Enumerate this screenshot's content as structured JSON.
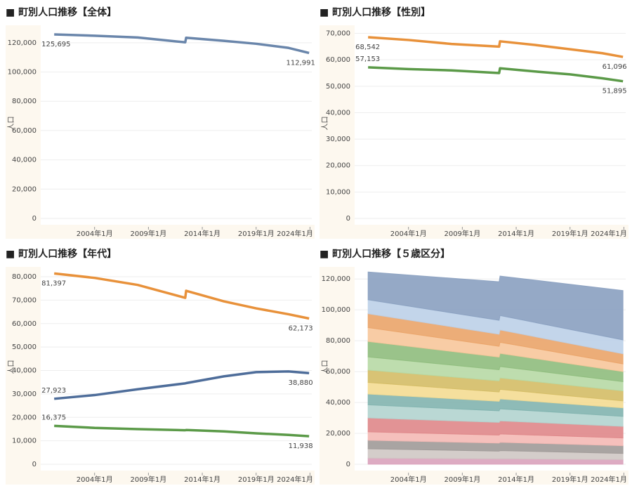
{
  "chart_data": [
    {
      "type": "line",
      "title": "■ 町別人口推移【全体】",
      "y_label": "人口",
      "x": [
        "2000-04",
        "2004-01",
        "2008-01",
        "2012-06",
        "2012-07",
        "2016-01",
        "2019-01",
        "2022-01",
        "2023-12"
      ],
      "series": [
        {
          "color": "#6a86ab",
          "values": [
            125695,
            124800,
            123600,
            120300,
            123400,
            121300,
            119300,
            116500,
            112991
          ],
          "value_labels": [
            "125,695",
            null,
            null,
            null,
            null,
            null,
            null,
            null,
            "112,991"
          ]
        }
      ],
      "xlim": [
        "1999-01",
        "2024-03"
      ],
      "xticks": [
        {
          "value": "2004-01",
          "label": "2004年1月"
        },
        {
          "value": "2009-01",
          "label": "2009年1月"
        },
        {
          "value": "2014-01",
          "label": "2014年1月"
        },
        {
          "value": "2019-01",
          "label": "2019年1月"
        },
        {
          "value": "2024-01",
          "label": "2024年1月"
        }
      ],
      "ylim": [
        0,
        130000
      ],
      "yticks": [
        0,
        {
          "value": 20000,
          "label": "20,000"
        },
        {
          "value": 40000,
          "label": "40,000"
        },
        {
          "value": 60000,
          "label": "60,000"
        },
        {
          "value": 80000,
          "label": "80,000"
        },
        {
          "value": 100000,
          "label": "100,000"
        },
        {
          "value": 120000,
          "label": "120,000"
        }
      ],
      "grid": true
    },
    {
      "type": "line",
      "title": "■ 町別人口推移【性別】",
      "y_label": "人口",
      "x": [
        "2000-04",
        "2004-01",
        "2008-01",
        "2012-06",
        "2012-07",
        "2016-01",
        "2019-01",
        "2022-01",
        "2023-12"
      ],
      "series": [
        {
          "color": "#e8913a",
          "values": [
            68542,
            67500,
            66000,
            65000,
            67000,
            65500,
            64000,
            62500,
            61096
          ],
          "value_labels": [
            "68,542",
            null,
            null,
            null,
            null,
            null,
            null,
            null,
            "61,096"
          ]
        },
        {
          "color": "#5b9a48",
          "values": [
            57153,
            56500,
            56000,
            55000,
            56800,
            55500,
            54500,
            53000,
            51895
          ],
          "value_labels": [
            "57,153",
            null,
            null,
            null,
            null,
            null,
            null,
            null,
            "51,895"
          ]
        }
      ],
      "xlim": [
        "1999-01",
        "2024-03"
      ],
      "xticks": [
        {
          "value": "2004-01",
          "label": "2004年1月"
        },
        {
          "value": "2009-01",
          "label": "2009年1月"
        },
        {
          "value": "2014-01",
          "label": "2014年1月"
        },
        {
          "value": "2019-01",
          "label": "2019年1月"
        },
        {
          "value": "2024-01",
          "label": "2024年1月"
        }
      ],
      "ylim": [
        0,
        72000
      ],
      "yticks": [
        0,
        {
          "value": 10000,
          "label": "10,000"
        },
        {
          "value": 20000,
          "label": "20,000"
        },
        {
          "value": 30000,
          "label": "30,000"
        },
        {
          "value": 40000,
          "label": "40,000"
        },
        {
          "value": 50000,
          "label": "50,000"
        },
        {
          "value": 60000,
          "label": "60,000"
        },
        {
          "value": 70000,
          "label": "70,000"
        }
      ],
      "grid": true
    },
    {
      "type": "line",
      "title": "■ 町別人口推移【年代】",
      "y_label": "人口",
      "x": [
        "2000-04",
        "2004-01",
        "2008-01",
        "2012-06",
        "2012-07",
        "2016-01",
        "2019-01",
        "2022-01",
        "2023-12"
      ],
      "series": [
        {
          "color": "#e8913a",
          "values": [
            81397,
            79500,
            76500,
            71000,
            74000,
            69500,
            66500,
            64000,
            62173
          ],
          "value_labels": [
            "81,397",
            null,
            null,
            null,
            null,
            null,
            null,
            null,
            "62,173"
          ]
        },
        {
          "color": "#4e6d9a",
          "values": [
            27923,
            29500,
            32000,
            34500,
            34600,
            37500,
            39300,
            39600,
            38880
          ],
          "value_labels": [
            "27,923",
            null,
            null,
            null,
            null,
            null,
            null,
            null,
            "38,880"
          ]
        },
        {
          "color": "#5b9a48",
          "values": [
            16375,
            15500,
            15000,
            14500,
            14600,
            14000,
            13200,
            12500,
            11938
          ],
          "value_labels": [
            "16,375",
            null,
            null,
            null,
            null,
            null,
            null,
            null,
            "11,938"
          ]
        }
      ],
      "xlim": [
        "1999-01",
        "2024-03"
      ],
      "xticks": [
        {
          "value": "2004-01",
          "label": "2004年1月"
        },
        {
          "value": "2009-01",
          "label": "2009年1月"
        },
        {
          "value": "2014-01",
          "label": "2014年1月"
        },
        {
          "value": "2019-01",
          "label": "2019年1月"
        },
        {
          "value": "2024-01",
          "label": "2024年1月"
        }
      ],
      "ylim": [
        0,
        83000
      ],
      "yticks": [
        0,
        {
          "value": 10000,
          "label": "10,000"
        },
        {
          "value": 20000,
          "label": "20,000"
        },
        {
          "value": 30000,
          "label": "30,000"
        },
        {
          "value": 40000,
          "label": "40,000"
        },
        {
          "value": 50000,
          "label": "50,000"
        },
        {
          "value": 60000,
          "label": "60,000"
        },
        {
          "value": 70000,
          "label": "70,000"
        },
        {
          "value": 80000,
          "label": "80,000"
        }
      ],
      "grid": true
    },
    {
      "type": "area",
      "title": "■ 町別人口推移【５歳区分】",
      "y_label": "人口",
      "x": [
        "2000-04",
        "2012-06",
        "2012-07",
        "2023-12"
      ],
      "series": [
        {
          "color": "#d9a2bb",
          "values": [
            4000,
            3500,
            3600,
            3000
          ]
        },
        {
          "color": "#cfc8c4",
          "values": [
            6000,
            5000,
            5200,
            4000
          ]
        },
        {
          "color": "#a09a98",
          "values": [
            5500,
            5200,
            5400,
            5000
          ]
        },
        {
          "color": "#f4b9b5",
          "values": [
            5500,
            5200,
            5400,
            5000
          ]
        },
        {
          "color": "#df878a",
          "values": [
            9000,
            8200,
            8500,
            7500
          ]
        },
        {
          "color": "#b3d4cf",
          "values": [
            8500,
            7500,
            7800,
            6500
          ]
        },
        {
          "color": "#82b4af",
          "values": [
            7000,
            6200,
            6400,
            5500
          ]
        },
        {
          "color": "#f4dc92",
          "values": [
            7500,
            6000,
            6200,
            4500
          ]
        },
        {
          "color": "#d4bc66",
          "values": [
            8000,
            7200,
            7400,
            6500
          ]
        },
        {
          "color": "#b7d9a5",
          "values": [
            8500,
            7200,
            7400,
            6000
          ]
        },
        {
          "color": "#8fbd7d",
          "values": [
            10000,
            8200,
            8500,
            6500
          ]
        },
        {
          "color": "#f7c79b",
          "values": [
            9000,
            7000,
            7200,
            5000
          ]
        },
        {
          "color": "#eaa469",
          "values": [
            9000,
            7800,
            8000,
            6500
          ]
        },
        {
          "color": "#bdd0e8",
          "values": [
            9000,
            9000,
            9300,
            9000
          ]
        },
        {
          "color": "#8aa0c0",
          "values": [
            18000,
            25000,
            25600,
            32000
          ]
        }
      ],
      "xlim": [
        "1999-01",
        "2024-03"
      ],
      "xticks": [
        {
          "value": "2004-01",
          "label": "2004年1月"
        },
        {
          "value": "2009-01",
          "label": "2009年1月"
        },
        {
          "value": "2014-01",
          "label": "2014年1月"
        },
        {
          "value": "2019-01",
          "label": "2019年1月"
        },
        {
          "value": "2024-01",
          "label": "2024年1月"
        }
      ],
      "ylim": [
        0,
        126000
      ],
      "yticks": [
        0,
        {
          "value": 20000,
          "label": "20,000"
        },
        {
          "value": 40000,
          "label": "40,000"
        },
        {
          "value": 60000,
          "label": "60,000"
        },
        {
          "value": 80000,
          "label": "80,000"
        },
        {
          "value": 100000,
          "label": "100,000"
        },
        {
          "value": 120000,
          "label": "120,000"
        }
      ],
      "grid": true
    }
  ]
}
